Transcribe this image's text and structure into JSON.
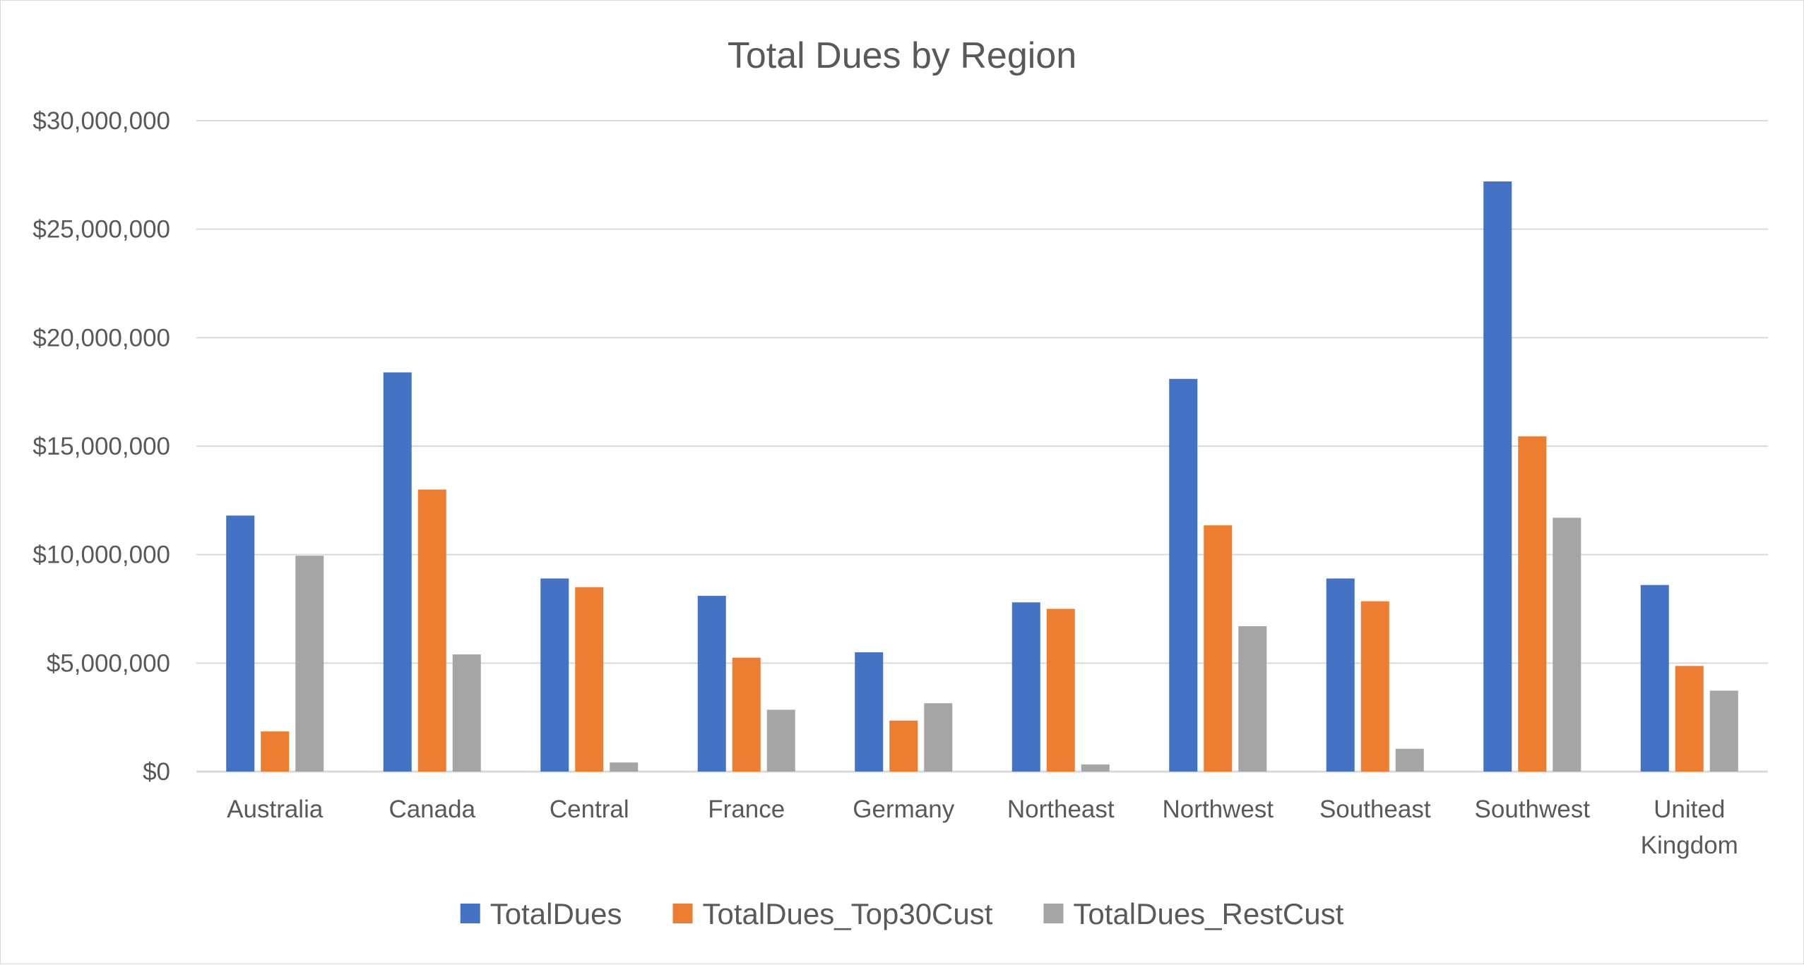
{
  "chart_data": {
    "type": "bar",
    "title": "Total Dues by Region",
    "xlabel": "",
    "ylabel": "",
    "categories": [
      "Australia",
      "Canada",
      "Central",
      "France",
      "Germany",
      "Northeast",
      "Northwest",
      "Southeast",
      "Southwest",
      "United Kingdom"
    ],
    "y_ticks": [
      0,
      5000000,
      10000000,
      15000000,
      20000000,
      25000000,
      30000000
    ],
    "y_tick_labels": [
      "$0",
      "$5,000,000",
      "$10,000,000",
      "$15,000,000",
      "$20,000,000",
      "$25,000,000",
      "$30,000,000"
    ],
    "ylim": [
      0,
      30000000
    ],
    "grid": true,
    "legend_position": "bottom",
    "series": [
      {
        "name": "TotalDues",
        "color": "#4472c4",
        "values": [
          11800000,
          18400000,
          8900000,
          8100000,
          5500000,
          7800000,
          18100000,
          8900000,
          27200000,
          8600000
        ]
      },
      {
        "name": "TotalDues_Top30Cust",
        "color": "#ed7d31",
        "values": [
          1850000,
          13000000,
          8500000,
          5250000,
          2350000,
          7500000,
          11350000,
          7850000,
          15450000,
          4870000
        ]
      },
      {
        "name": "TotalDues_RestCust",
        "color": "#a5a5a5",
        "values": [
          9950000,
          5400000,
          420000,
          2850000,
          3150000,
          330000,
          6700000,
          1050000,
          11700000,
          3730000
        ]
      }
    ],
    "gridline_color": "#d9d9d9",
    "axis_color": "#d9d9d9",
    "text_color": "#595959"
  }
}
